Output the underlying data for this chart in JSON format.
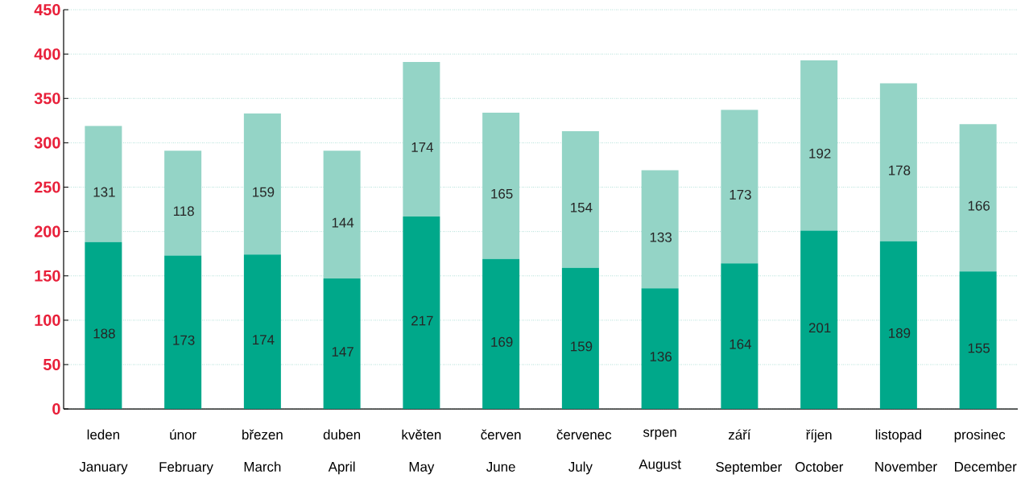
{
  "chart_data": {
    "type": "bar",
    "stacked": true,
    "categories": [
      "leden January",
      "únor February",
      "březen March",
      "duben April",
      "květen May",
      "červen June",
      "červenec July",
      "srpen August",
      "září September",
      "říjen October",
      "listopad November",
      "prosinec December"
    ],
    "series": [
      {
        "color": "#00a88a",
        "values": [
          188,
          173,
          174,
          147,
          217,
          169,
          159,
          136,
          164,
          201,
          189,
          155
        ]
      },
      {
        "color": "#94d4c6",
        "values": [
          131,
          118,
          159,
          144,
          174,
          165,
          154,
          133,
          173,
          192,
          178,
          166
        ]
      }
    ],
    "ylim": [
      0,
      450
    ],
    "yticks": [
      0,
      50,
      100,
      150,
      200,
      250,
      300,
      350,
      400,
      450
    ],
    "grid": "y",
    "data_labels": true
  }
}
